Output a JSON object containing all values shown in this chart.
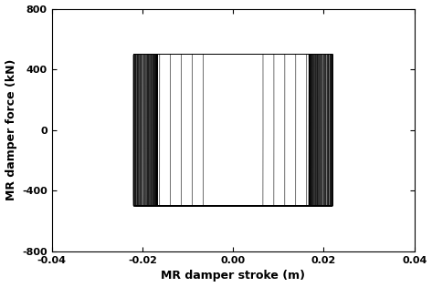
{
  "title": "",
  "xlabel": "MR damper stroke (m)",
  "ylabel": "MR damper force (kN)",
  "xlim": [
    -0.04,
    0.04
  ],
  "ylim": [
    -800,
    800
  ],
  "xticks": [
    -0.04,
    -0.02,
    0,
    0.02,
    0.04
  ],
  "yticks": [
    -800,
    -400,
    0,
    400,
    800
  ],
  "stroke_amplitude_max": 0.022,
  "force_sat": 500,
  "num_cycles": 80,
  "line_color": "black",
  "line_width": 0.4,
  "bg_color": "white",
  "figsize": [
    4.73,
    3.15
  ],
  "dpi": 100,
  "tanh_sharpness": 80.0
}
